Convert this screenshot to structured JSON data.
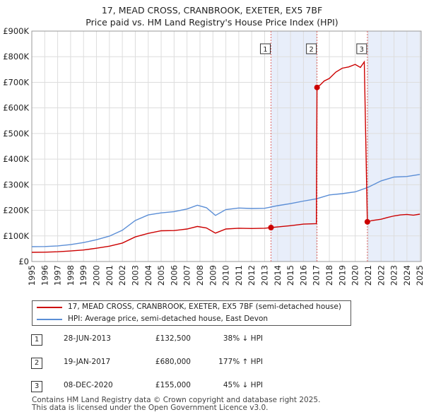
{
  "title_line1": "17, MEAD CROSS, CRANBROOK, EXETER, EX5 7BF",
  "title_line2": "Price paid vs. HM Land Registry's House Price Index (HPI)",
  "chart_data": {
    "type": "line",
    "title": "17, MEAD CROSS, CRANBROOK, EXETER, EX5 7BF — Price paid vs. HM Land Registry's House Price Index (HPI)",
    "xlim": [
      1995,
      2025.1
    ],
    "ylim": [
      0,
      900000
    ],
    "yticks": [
      0,
      100000,
      200000,
      300000,
      400000,
      500000,
      600000,
      700000,
      800000,
      900000
    ],
    "ytick_labels": [
      "£0",
      "£100K",
      "£200K",
      "£300K",
      "£400K",
      "£500K",
      "£600K",
      "£700K",
      "£800K",
      "£900K"
    ],
    "xticks": [
      1995,
      1996,
      1997,
      1998,
      1999,
      2000,
      2001,
      2002,
      2003,
      2004,
      2005,
      2006,
      2007,
      2008,
      2009,
      2010,
      2011,
      2012,
      2013,
      2014,
      2015,
      2016,
      2017,
      2018,
      2019,
      2020,
      2021,
      2022,
      2023,
      2024,
      2025
    ],
    "grid": true,
    "shaded_regions": [
      [
        2013.49,
        2017.05
      ],
      [
        2020.94,
        2025.1
      ]
    ],
    "series": [
      {
        "name": "17, MEAD CROSS, CRANBROOK, EXETER, EX5 7BF (semi-detached house)",
        "color": "#cc0000",
        "x": [
          1995.0,
          1996.0,
          1997.0,
          1998.0,
          1999.0,
          2000.0,
          2001.0,
          2002.0,
          2003.0,
          2004.0,
          2005.0,
          2006.0,
          2007.0,
          2007.8,
          2008.5,
          2009.2,
          2010.0,
          2011.0,
          2012.0,
          2013.0,
          2013.49,
          2014.0,
          2015.0,
          2016.0,
          2017.0,
          2017.05,
          2017.3,
          2017.6,
          2018.0,
          2018.5,
          2019.0,
          2019.5,
          2020.0,
          2020.4,
          2020.7,
          2020.94,
          2021.3,
          2022.0,
          2022.5,
          2023.0,
          2023.5,
          2024.0,
          2024.5,
          2025.0
        ],
        "values": [
          36000,
          36500,
          38000,
          41000,
          45000,
          52000,
          60000,
          72000,
          96000,
          110000,
          120000,
          121000,
          127000,
          137000,
          131000,
          111000,
          127000,
          130000,
          129000,
          130000,
          132500,
          135000,
          140000,
          146000,
          148000,
          680000,
          690000,
          705000,
          715000,
          740000,
          755000,
          760000,
          770000,
          758000,
          780000,
          155000,
          160000,
          165000,
          172000,
          178000,
          182000,
          184000,
          181000,
          185000
        ]
      },
      {
        "name": "HPI: Average price, semi-detached house, East Devon",
        "color": "#5b8ed6",
        "x": [
          1995.0,
          1996.0,
          1997.0,
          1998.0,
          1999.0,
          2000.0,
          2001.0,
          2002.0,
          2003.0,
          2004.0,
          2005.0,
          2006.0,
          2007.0,
          2007.8,
          2008.5,
          2009.2,
          2010.0,
          2011.0,
          2012.0,
          2013.0,
          2014.0,
          2015.0,
          2016.0,
          2017.0,
          2018.0,
          2019.0,
          2020.0,
          2021.0,
          2022.0,
          2023.0,
          2024.0,
          2025.0
        ],
        "values": [
          58000,
          58500,
          61000,
          66000,
          74000,
          85000,
          99000,
          122000,
          160000,
          182000,
          190000,
          195000,
          205000,
          220000,
          210000,
          180000,
          203000,
          209000,
          207000,
          208000,
          218000,
          226000,
          236000,
          245000,
          260000,
          265000,
          272000,
          290000,
          315000,
          330000,
          332000,
          340000
        ]
      }
    ],
    "markers": [
      {
        "label": "1",
        "x": 2013.49,
        "value": 132500
      },
      {
        "label": "2",
        "x": 2017.05,
        "value": 680000
      },
      {
        "label": "3",
        "x": 2020.94,
        "value": 155000
      }
    ]
  },
  "legend": {
    "property": "17, MEAD CROSS, CRANBROOK, EXETER, EX5 7BF (semi-detached house)",
    "hpi": "HPI: Average price, semi-detached house, East Devon"
  },
  "transactions": [
    {
      "num": "1",
      "date": "28-JUN-2013",
      "price": "£132,500",
      "hpi": "38% ↓ HPI"
    },
    {
      "num": "2",
      "date": "19-JAN-2017",
      "price": "£680,000",
      "hpi": "177% ↑ HPI"
    },
    {
      "num": "3",
      "date": "08-DEC-2020",
      "price": "£155,000",
      "hpi": "45% ↓ HPI"
    }
  ],
  "footer_line1": "Contains HM Land Registry data © Crown copyright and database right 2025.",
  "footer_line2": "This data is licensed under the Open Government Licence v3.0.",
  "colors": {
    "property": "#cc0000",
    "hpi": "#5b8ed6",
    "shade": "#e8eefa",
    "grid": "#dddddd"
  }
}
